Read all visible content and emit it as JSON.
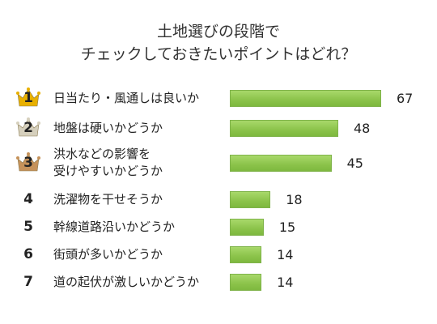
{
  "chart_data": {
    "type": "bar",
    "orientation": "horizontal",
    "title_lines": [
      "土地選びの段階で",
      "チェックしておきたいポイントはどれ？"
    ],
    "categories": [
      "日当たり・風通しは良いか",
      "地盤は硬いかどうか",
      "洪水などの影響を\n受けやすいかどうか",
      "洗濯物を干せそうか",
      "幹線道路沿いかどうか",
      "街頭が多いかどうか",
      "道の起伏が激しいかどうか"
    ],
    "ranks": [
      "1",
      "2",
      "3",
      "4",
      "5",
      "6",
      "7"
    ],
    "values": [
      67,
      48,
      45,
      18,
      15,
      14,
      14
    ],
    "value_labels": [
      "67",
      "48",
      "45",
      "18",
      "15",
      "14",
      "14"
    ],
    "bar_color": "#8bc34a",
    "crown_colors": [
      "#e8b000",
      "#d6d0bd",
      "#c6925a"
    ],
    "grid": false
  }
}
